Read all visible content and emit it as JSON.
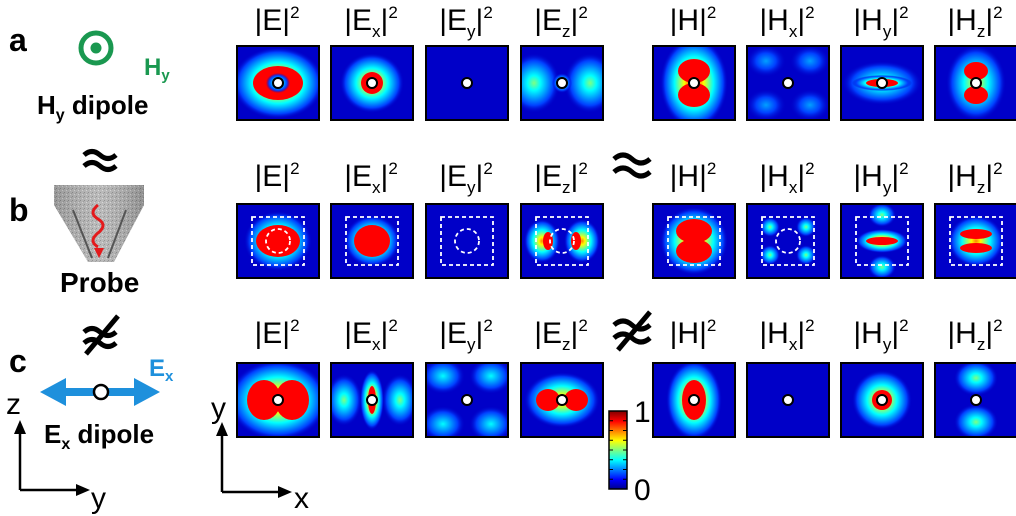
{
  "row_letters": [
    "a",
    "b",
    "c"
  ],
  "headers": [
    {
      "base": "|E|",
      "sub": "",
      "sup": "2"
    },
    {
      "base": "|E",
      "sub": "x",
      "sup": "2"
    },
    {
      "base": "|E",
      "sub": "y",
      "sup": "2"
    },
    {
      "base": "|E",
      "sub": "z",
      "sup": "2"
    },
    {
      "base": "|H|",
      "sub": "",
      "sup": "2"
    },
    {
      "base": "|H",
      "sub": "x",
      "sup": "2"
    },
    {
      "base": "|H",
      "sub": "y",
      "sup": "2"
    },
    {
      "base": "|H",
      "sub": "z",
      "sup": "2"
    }
  ],
  "left": {
    "hy_label": "H",
    "hy_sub": "y",
    "hy_dipole": "H",
    "hy_dipole_sub": "y",
    "hy_dipole_word": " dipole",
    "probe_label": "Probe",
    "ex_label": "E",
    "ex_sub": "x",
    "ex_dipole": "E",
    "ex_dipole_sub": "x",
    "ex_dipole_word": " dipole",
    "approx_symbol": "≈",
    "not_approx_symbol": "≉"
  },
  "axes_left": {
    "vertical": "z",
    "horizontal": "y"
  },
  "axes_mid": {
    "vertical": "y",
    "horizontal": "x"
  },
  "colorbar": {
    "max_label": "1",
    "min_label": "0",
    "colors": [
      "#00008f",
      "#0000ff",
      "#0080ff",
      "#00ffff",
      "#80ff80",
      "#ffff00",
      "#ff8000",
      "#ff0000",
      "#800000"
    ]
  },
  "colors": {
    "dipole_green": "#1a9850",
    "ex_blue": "#1e90dc",
    "field_bg": "#0000c8"
  },
  "rows": [
    [
      "E_donut_x",
      "E_ring",
      "E_dot",
      "E_lobes_h_cyan",
      "H_peanut_v",
      "H_clover_dim",
      "H_bar_h",
      "H_lobes_v"
    ],
    [
      "E_box_ring",
      "E_box_red",
      "E_box_empty",
      "E_box_lobes_h",
      "H_box_peanut",
      "H_box_spots",
      "H_box_bar",
      "H_box_lobes_v"
    ],
    [
      "E_peanut_h",
      "E_bar_v",
      "E_clover",
      "E_lobes_h",
      "H_ellipse_v",
      "H_dot",
      "H_ring",
      "H_lobes_v_cyan"
    ]
  ]
}
